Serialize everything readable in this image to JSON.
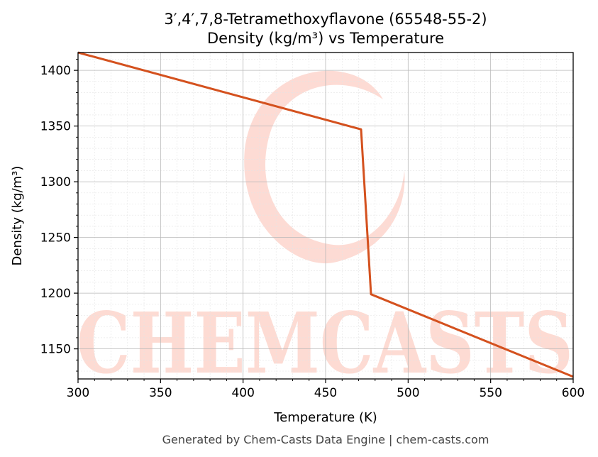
{
  "chart_data": {
    "type": "line",
    "title_lines": [
      "3′,4′,7,8-Tetramethoxyflavone (65548-55-2)",
      "Density (kg/m³) vs Temperature"
    ],
    "xlabel": "Temperature (K)",
    "ylabel": "Density (kg/m³)",
    "xlim": [
      300,
      600
    ],
    "ylim": [
      1123,
      1416
    ],
    "x_ticks": [
      300,
      350,
      400,
      450,
      500,
      550,
      600
    ],
    "y_ticks": [
      1150,
      1200,
      1250,
      1300,
      1350,
      1400
    ],
    "grid": true,
    "legend": "none",
    "series": [
      {
        "color": "#d4511e",
        "x": [
          300,
          471.5,
          477.5,
          600
        ],
        "y": [
          1416,
          1347,
          1199,
          1125
        ]
      }
    ]
  },
  "watermark": {
    "text": "CHEMCASTS",
    "color": "#fdd5cc"
  },
  "footer": "Generated by Chem-Casts Data Engine | chem-casts.com"
}
